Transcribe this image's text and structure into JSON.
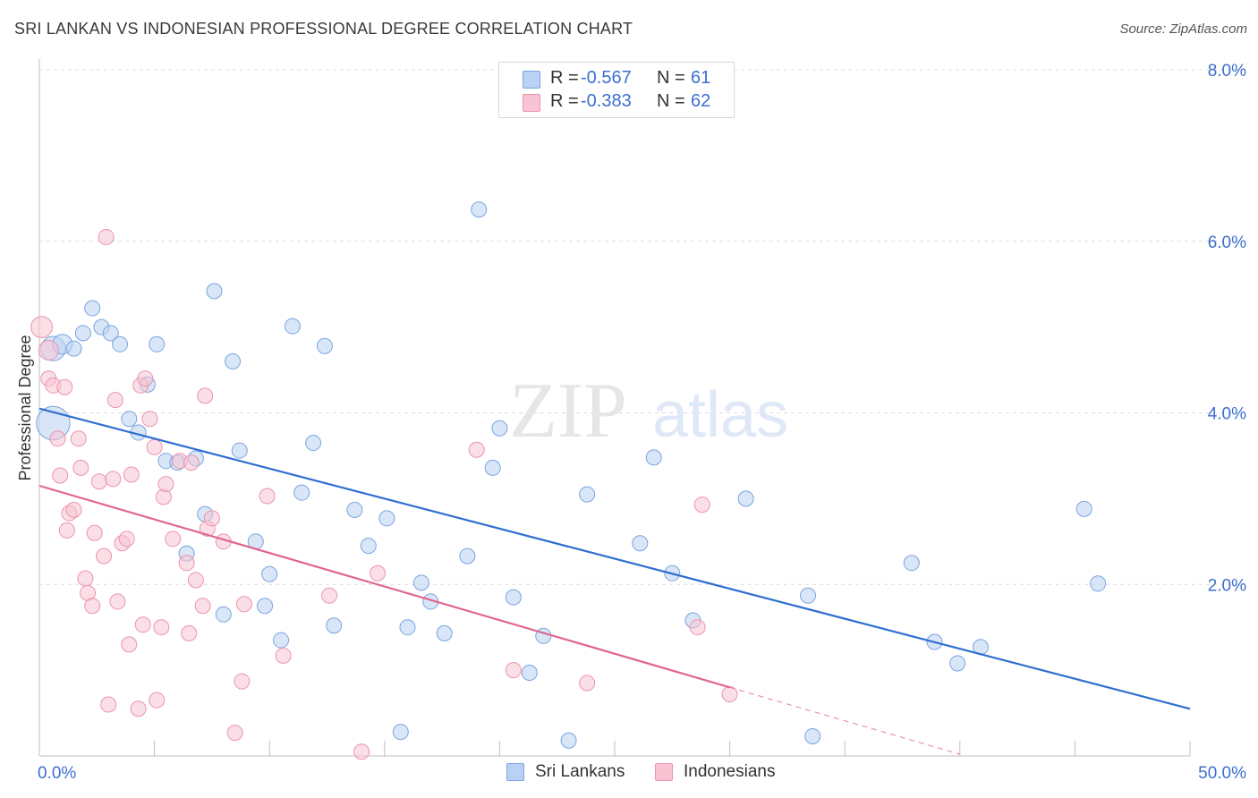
{
  "title": "SRI LANKAN VS INDONESIAN PROFESSIONAL DEGREE CORRELATION CHART",
  "source": "Source: ZipAtlas.com",
  "watermark": {
    "zip": "ZIP",
    "atlas": "atlas"
  },
  "legend": {
    "rows": [
      {
        "r_label": "R =",
        "r_value": "-0.567",
        "n_label": "N =",
        "n_value": "61",
        "fill": "#b9d1f3",
        "stroke": "#7ba4e0"
      },
      {
        "r_label": "R =",
        "r_value": "-0.383",
        "n_label": "N =",
        "n_value": "62",
        "fill": "#f8c4d4",
        "stroke": "#ec93ad"
      }
    ]
  },
  "bottom_legend": [
    {
      "label": "Sri Lankans",
      "fill": "#b9d1f3",
      "stroke": "#7ba4e0"
    },
    {
      "label": "Indonesians",
      "fill": "#f8c4d4",
      "stroke": "#ec93ad"
    }
  ],
  "chart_data": {
    "type": "scatter",
    "title": "SRI LANKAN VS INDONESIAN PROFESSIONAL DEGREE CORRELATION CHART",
    "xlabel": "",
    "ylabel": "Professional Degree",
    "xlim": [
      0,
      50
    ],
    "ylim": [
      0,
      8
    ],
    "x_tick_labels": [
      "0.0%",
      "50.0%"
    ],
    "y_ticks": [
      2,
      4,
      6,
      8
    ],
    "y_tick_labels": [
      "2.0%",
      "4.0%",
      "6.0%",
      "8.0%"
    ],
    "grid": true,
    "colors": {
      "sri_lankans": "#3c78d8",
      "indonesians": "#e8739a",
      "tick_label": "#3c6fcf"
    },
    "series": [
      {
        "name": "Sri Lankans",
        "marker_fill": "#b9d1f3",
        "marker_stroke": "#7ba4e0",
        "line_color": "#2f6fd0",
        "trend": {
          "x0": 0,
          "y0": 4.05,
          "x1": 50,
          "y1": 0.55
        },
        "points": [
          [
            0.6,
            3.88,
            2.2
          ],
          [
            0.6,
            4.75,
            1.6
          ],
          [
            1.0,
            4.8,
            1.3
          ],
          [
            1.5,
            4.75,
            1
          ],
          [
            1.9,
            4.93,
            1
          ],
          [
            2.3,
            5.22,
            1
          ],
          [
            2.7,
            5.0,
            1
          ],
          [
            3.1,
            4.93,
            1
          ],
          [
            3.5,
            4.8,
            1
          ],
          [
            3.9,
            3.93,
            1
          ],
          [
            4.3,
            3.77,
            1
          ],
          [
            4.7,
            4.33,
            1
          ],
          [
            5.1,
            4.8,
            1
          ],
          [
            5.5,
            3.44,
            1
          ],
          [
            6.0,
            3.42,
            1
          ],
          [
            6.4,
            2.36,
            1
          ],
          [
            6.8,
            3.47,
            1
          ],
          [
            7.2,
            2.82,
            1
          ],
          [
            7.6,
            5.42,
            1
          ],
          [
            8.0,
            1.65,
            1
          ],
          [
            8.4,
            4.6,
            1
          ],
          [
            8.7,
            3.56,
            1
          ],
          [
            9.4,
            2.5,
            1
          ],
          [
            9.8,
            1.75,
            1
          ],
          [
            10.0,
            2.12,
            1
          ],
          [
            10.5,
            1.35,
            1
          ],
          [
            11.0,
            5.01,
            1
          ],
          [
            11.4,
            3.07,
            1
          ],
          [
            11.9,
            3.65,
            1
          ],
          [
            12.4,
            4.78,
            1
          ],
          [
            12.8,
            1.52,
            1
          ],
          [
            13.7,
            2.87,
            1
          ],
          [
            14.3,
            2.45,
            1
          ],
          [
            15.1,
            2.77,
            1
          ],
          [
            15.7,
            0.28,
            1
          ],
          [
            16.0,
            1.5,
            1
          ],
          [
            16.6,
            2.02,
            1
          ],
          [
            17.0,
            1.8,
            1
          ],
          [
            17.6,
            1.43,
            1
          ],
          [
            18.6,
            2.33,
            1
          ],
          [
            19.1,
            6.37,
            1
          ],
          [
            19.7,
            3.36,
            1
          ],
          [
            20.0,
            3.82,
            1
          ],
          [
            20.6,
            1.85,
            1
          ],
          [
            21.3,
            0.97,
            1
          ],
          [
            21.9,
            1.4,
            1
          ],
          [
            23.0,
            0.18,
            1
          ],
          [
            23.8,
            3.05,
            1
          ],
          [
            26.1,
            2.48,
            1
          ],
          [
            26.7,
            3.48,
            1
          ],
          [
            27.5,
            2.13,
            1
          ],
          [
            28.4,
            1.58,
            1
          ],
          [
            30.7,
            3.0,
            1
          ],
          [
            33.4,
            1.87,
            1
          ],
          [
            33.6,
            0.23,
            1
          ],
          [
            37.9,
            2.25,
            1
          ],
          [
            38.9,
            1.33,
            1
          ],
          [
            39.9,
            1.08,
            1
          ],
          [
            40.9,
            1.27,
            1
          ],
          [
            45.4,
            2.88,
            1
          ],
          [
            46.0,
            2.01,
            1
          ]
        ]
      },
      {
        "name": "Indonesians",
        "marker_fill": "#f8c4d4",
        "marker_stroke": "#ec93ad",
        "line_color": "#e0668f",
        "trend": {
          "x0": 0,
          "y0": 3.15,
          "x1": 30,
          "y1": 0.8
        },
        "trend_dashed": {
          "x0": 30,
          "y0": 0.8,
          "x1": 40,
          "y1": 0.02
        },
        "points": [
          [
            0.1,
            5.0,
            1.4
          ],
          [
            0.4,
            4.73,
            1.3
          ],
          [
            0.4,
            4.4,
            1
          ],
          [
            0.6,
            4.32,
            1
          ],
          [
            0.8,
            3.7,
            1
          ],
          [
            0.9,
            3.27,
            1
          ],
          [
            1.1,
            4.3,
            1
          ],
          [
            1.2,
            2.63,
            1
          ],
          [
            1.3,
            2.83,
            1
          ],
          [
            1.5,
            2.87,
            1
          ],
          [
            1.7,
            3.7,
            1
          ],
          [
            1.8,
            3.36,
            1
          ],
          [
            2.0,
            2.07,
            1
          ],
          [
            2.1,
            1.9,
            1
          ],
          [
            2.3,
            1.75,
            1
          ],
          [
            2.4,
            2.6,
            1
          ],
          [
            2.6,
            3.2,
            1
          ],
          [
            2.8,
            2.33,
            1
          ],
          [
            2.9,
            6.05,
            1
          ],
          [
            3.0,
            0.6,
            1
          ],
          [
            3.2,
            3.23,
            1
          ],
          [
            3.3,
            4.15,
            1
          ],
          [
            3.4,
            1.8,
            1
          ],
          [
            3.6,
            2.48,
            1
          ],
          [
            3.8,
            2.53,
            1
          ],
          [
            3.9,
            1.3,
            1
          ],
          [
            4.0,
            3.28,
            1
          ],
          [
            4.3,
            0.55,
            1
          ],
          [
            4.4,
            4.32,
            1
          ],
          [
            4.5,
            1.53,
            1
          ],
          [
            4.6,
            4.4,
            1
          ],
          [
            4.8,
            3.93,
            1
          ],
          [
            5.0,
            3.6,
            1
          ],
          [
            5.1,
            0.65,
            1
          ],
          [
            5.3,
            1.5,
            1
          ],
          [
            5.4,
            3.02,
            1
          ],
          [
            5.5,
            3.17,
            1
          ],
          [
            5.8,
            2.53,
            1
          ],
          [
            6.1,
            3.44,
            1
          ],
          [
            6.4,
            2.25,
            1
          ],
          [
            6.5,
            1.43,
            1
          ],
          [
            6.6,
            3.42,
            1
          ],
          [
            6.8,
            2.05,
            1
          ],
          [
            7.1,
            1.75,
            1
          ],
          [
            7.2,
            4.2,
            1
          ],
          [
            7.3,
            2.65,
            1
          ],
          [
            7.5,
            2.77,
            1
          ],
          [
            8.0,
            2.5,
            1
          ],
          [
            8.5,
            0.27,
            1
          ],
          [
            8.8,
            0.87,
            1
          ],
          [
            8.9,
            1.77,
            1
          ],
          [
            9.9,
            3.03,
            1
          ],
          [
            10.6,
            1.17,
            1
          ],
          [
            12.6,
            1.87,
            1
          ],
          [
            14.0,
            0.05,
            1
          ],
          [
            14.7,
            2.13,
            1
          ],
          [
            19.0,
            3.57,
            1
          ],
          [
            20.6,
            1.0,
            1
          ],
          [
            23.8,
            0.85,
            1
          ],
          [
            28.6,
            1.5,
            1
          ],
          [
            28.8,
            2.93,
            1
          ],
          [
            30.0,
            0.72,
            1
          ]
        ]
      }
    ]
  }
}
